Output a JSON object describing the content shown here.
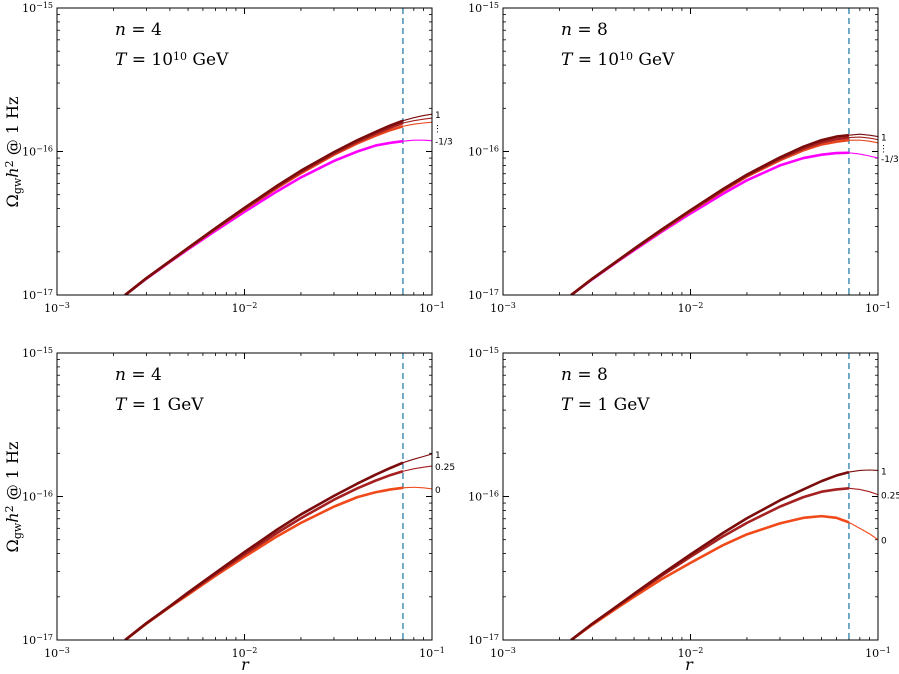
{
  "figure": {
    "ylabel": {
      "base": "Ω",
      "sub": "gw",
      "mid": "h",
      "sup": "2",
      "tail": " @ 1 Hz"
    },
    "xlabel": "r"
  },
  "chart_data": [
    {
      "type": "line",
      "panel": "top-left",
      "annot_n": "n = 4",
      "annot_T": {
        "prefix": "T = 10",
        "exp": "10",
        "unit": " GeV"
      },
      "xscale": "log",
      "yscale": "log",
      "xlim": [
        0.001,
        0.1
      ],
      "ylim": [
        1e-17,
        1e-15
      ],
      "xticks": [
        {
          "base": "10",
          "exp": "−3"
        },
        {
          "base": "10",
          "exp": "−2"
        },
        {
          "base": "10",
          "exp": "−1"
        }
      ],
      "yticks": [
        {
          "base": "10",
          "exp": "−17"
        },
        {
          "base": "10",
          "exp": "−16"
        },
        {
          "base": "10",
          "exp": "−15"
        }
      ],
      "vline_x": 0.07,
      "x": [
        0.00231,
        0.003,
        0.004,
        0.005,
        0.007,
        0.01,
        0.015,
        0.02,
        0.03,
        0.04,
        0.05,
        0.06,
        0.07
      ],
      "label_dots": "⋮",
      "series": [
        {
          "name": "1",
          "color": "#7a0c0c",
          "tail_x": [
            0.07,
            0.08,
            0.09,
            0.1
          ],
          "tail_y": [
            1.64e-16,
            1.72e-16,
            1.78e-16,
            1.82e-16
          ],
          "y": [
            1e-17,
            1.31e-17,
            1.72e-17,
            2.13e-17,
            2.92e-17,
            4.05e-17,
            5.8e-17,
            7.35e-17,
            9.9e-17,
            1.2e-16,
            1.37e-16,
            1.52e-16,
            1.64e-16
          ]
        },
        {
          "name": "",
          "color": "#a52020",
          "tail_x": [
            0.07,
            0.08,
            0.09,
            0.1
          ],
          "tail_y": [
            1.58e-16,
            1.64e-16,
            1.68e-16,
            1.71e-16
          ],
          "y": [
            1e-17,
            1.31e-17,
            1.72e-17,
            2.12e-17,
            2.9e-17,
            4e-17,
            5.7e-17,
            7.2e-17,
            9.7e-17,
            1.17e-16,
            1.33e-16,
            1.47e-16,
            1.58e-16
          ]
        },
        {
          "name": "",
          "color": "#e8451e",
          "tail_x": [
            0.07,
            0.08,
            0.09,
            0.1
          ],
          "tail_y": [
            1.5e-16,
            1.55e-16,
            1.58e-16,
            1.6e-16
          ],
          "y": [
            1e-17,
            1.31e-17,
            1.71e-17,
            2.11e-17,
            2.88e-17,
            3.95e-17,
            5.6e-17,
            7.05e-17,
            9.5e-17,
            1.14e-16,
            1.29e-16,
            1.41e-16,
            1.5e-16
          ]
        },
        {
          "name": "-1/3",
          "color": "#ff00ff",
          "tail_x": [
            0.07,
            0.08,
            0.09,
            0.1
          ],
          "tail_y": [
            1.18e-16,
            1.2e-16,
            1.2e-16,
            1.19e-16
          ],
          "y": [
            1e-17,
            1.3e-17,
            1.7e-17,
            2.08e-17,
            2.8e-17,
            3.8e-17,
            5.3e-17,
            6.6e-17,
            8.6e-17,
            1e-16,
            1.1e-16,
            1.15e-16,
            1.18e-16
          ]
        }
      ]
    },
    {
      "type": "line",
      "panel": "top-right",
      "annot_n": "n = 8",
      "annot_T": {
        "prefix": "T = 10",
        "exp": "10",
        "unit": " GeV"
      },
      "xscale": "log",
      "yscale": "log",
      "xlim": [
        0.001,
        0.1
      ],
      "ylim": [
        1e-17,
        1e-15
      ],
      "xticks": [
        {
          "base": "10",
          "exp": "−3"
        },
        {
          "base": "10",
          "exp": "−2"
        },
        {
          "base": "10",
          "exp": "−1"
        }
      ],
      "yticks": [
        {
          "base": "10",
          "exp": "−17"
        },
        {
          "base": "10",
          "exp": "−16"
        },
        {
          "base": "10",
          "exp": "−15"
        }
      ],
      "vline_x": 0.07,
      "x": [
        0.00231,
        0.003,
        0.004,
        0.005,
        0.007,
        0.01,
        0.015,
        0.02,
        0.03,
        0.04,
        0.05,
        0.06,
        0.07
      ],
      "label_dots": "⋮",
      "series": [
        {
          "name": "1",
          "color": "#7a0c0c",
          "tail_x": [
            0.07,
            0.08,
            0.09,
            0.1
          ],
          "tail_y": [
            1.3e-16,
            1.32e-16,
            1.3e-16,
            1.27e-16
          ],
          "y": [
            1e-17,
            1.3e-17,
            1.7e-17,
            2.1e-17,
            2.85e-17,
            3.9e-17,
            5.5e-17,
            6.9e-17,
            9.1e-17,
            1.08e-16,
            1.2e-16,
            1.27e-16,
            1.3e-16
          ]
        },
        {
          "name": "",
          "color": "#a52020",
          "tail_x": [
            0.07,
            0.08,
            0.09,
            0.1
          ],
          "tail_y": [
            1.25e-16,
            1.26e-16,
            1.24e-16,
            1.21e-16
          ],
          "y": [
            1e-17,
            1.3e-17,
            1.7e-17,
            2.09e-17,
            2.83e-17,
            3.86e-17,
            5.42e-17,
            6.8e-17,
            8.9e-17,
            1.05e-16,
            1.16e-16,
            1.22e-16,
            1.25e-16
          ]
        },
        {
          "name": "",
          "color": "#e8451e",
          "tail_x": [
            0.07,
            0.08,
            0.09,
            0.1
          ],
          "tail_y": [
            1.2e-16,
            1.2e-16,
            1.18e-16,
            1.15e-16
          ],
          "y": [
            1e-17,
            1.3e-17,
            1.69e-17,
            2.08e-17,
            2.8e-17,
            3.82e-17,
            5.35e-17,
            6.7e-17,
            8.7e-17,
            1.02e-16,
            1.12e-16,
            1.17e-16,
            1.2e-16
          ]
        },
        {
          "name": "-1/3",
          "color": "#ff00ff",
          "tail_x": [
            0.07,
            0.08,
            0.09,
            0.1
          ],
          "tail_y": [
            9.8e-17,
            9.6e-17,
            9.3e-17,
            9e-17
          ],
          "y": [
            1e-17,
            1.29e-17,
            1.68e-17,
            2.05e-17,
            2.75e-17,
            3.7e-17,
            5.1e-17,
            6.3e-17,
            8e-17,
            9e-17,
            9.5e-17,
            9.75e-17,
            9.8e-17
          ]
        }
      ]
    },
    {
      "type": "line",
      "panel": "bottom-left",
      "annot_n": "n = 4",
      "annot_T": {
        "prefix": "T = 1 GeV",
        "exp": "",
        "unit": ""
      },
      "xscale": "log",
      "yscale": "log",
      "xlim": [
        0.001,
        0.1
      ],
      "ylim": [
        1e-17,
        1e-15
      ],
      "xticks": [
        {
          "base": "10",
          "exp": "−3"
        },
        {
          "base": "10",
          "exp": "−2"
        },
        {
          "base": "10",
          "exp": "−1"
        }
      ],
      "yticks": [
        {
          "base": "10",
          "exp": "−17"
        },
        {
          "base": "10",
          "exp": "−16"
        },
        {
          "base": "10",
          "exp": "−15"
        }
      ],
      "vline_x": 0.07,
      "x": [
        0.00231,
        0.003,
        0.004,
        0.005,
        0.007,
        0.01,
        0.015,
        0.02,
        0.03,
        0.04,
        0.05,
        0.06,
        0.07
      ],
      "label_dots": "",
      "series": [
        {
          "name": "1",
          "color": "#7a0c0c",
          "tail_x": [
            0.07,
            0.08,
            0.09,
            0.1
          ],
          "tail_y": [
            1.72e-16,
            1.82e-16,
            1.9e-16,
            1.98e-16
          ],
          "y": [
            1e-17,
            1.31e-17,
            1.72e-17,
            2.14e-17,
            2.94e-17,
            4.1e-17,
            5.9e-17,
            7.5e-17,
            1.01e-16,
            1.23e-16,
            1.42e-16,
            1.58e-16,
            1.72e-16
          ]
        },
        {
          "name": "0.25",
          "color": "#a52020",
          "tail_x": [
            0.07,
            0.08,
            0.09,
            0.1
          ],
          "tail_y": [
            1.5e-16,
            1.56e-16,
            1.6e-16,
            1.63e-16
          ],
          "y": [
            1e-17,
            1.31e-17,
            1.71e-17,
            2.11e-17,
            2.88e-17,
            3.95e-17,
            5.6e-17,
            7.05e-17,
            9.5e-17,
            1.14e-16,
            1.29e-16,
            1.41e-16,
            1.5e-16
          ]
        },
        {
          "name": "0",
          "color": "#f04a1a",
          "tail_x": [
            0.07,
            0.08,
            0.09,
            0.1
          ],
          "tail_y": [
            1.15e-16,
            1.16e-16,
            1.15e-16,
            1.13e-16
          ],
          "y": [
            1e-17,
            1.3e-17,
            1.7e-17,
            2.07e-17,
            2.8e-17,
            3.8e-17,
            5.3e-17,
            6.55e-17,
            8.5e-17,
            9.9e-17,
            1.07e-16,
            1.12e-16,
            1.15e-16
          ]
        }
      ]
    },
    {
      "type": "line",
      "panel": "bottom-right",
      "annot_n": "n = 8",
      "annot_T": {
        "prefix": "T = 1 GeV",
        "exp": "",
        "unit": ""
      },
      "xscale": "log",
      "yscale": "log",
      "xlim": [
        0.001,
        0.1
      ],
      "ylim": [
        1e-17,
        1e-15
      ],
      "xticks": [
        {
          "base": "10",
          "exp": "−3"
        },
        {
          "base": "10",
          "exp": "−2"
        },
        {
          "base": "10",
          "exp": "−1"
        }
      ],
      "yticks": [
        {
          "base": "10",
          "exp": "−17"
        },
        {
          "base": "10",
          "exp": "−16"
        },
        {
          "base": "10",
          "exp": "−15"
        }
      ],
      "vline_x": 0.07,
      "x": [
        0.00231,
        0.003,
        0.004,
        0.005,
        0.007,
        0.01,
        0.015,
        0.02,
        0.03,
        0.04,
        0.05,
        0.06,
        0.07
      ],
      "label_dots": "",
      "series": [
        {
          "name": "1",
          "color": "#7a0c0c",
          "tail_x": [
            0.07,
            0.08,
            0.09,
            0.1
          ],
          "tail_y": [
            1.48e-16,
            1.52e-16,
            1.53e-16,
            1.52e-16
          ],
          "y": [
            1e-17,
            1.3e-17,
            1.7e-17,
            2.1e-17,
            2.87e-17,
            3.95e-17,
            5.6e-17,
            7.05e-17,
            9.4e-17,
            1.12e-16,
            1.28e-16,
            1.4e-16,
            1.48e-16
          ]
        },
        {
          "name": "0.25",
          "color": "#a52020",
          "tail_x": [
            0.07,
            0.08,
            0.09,
            0.1
          ],
          "tail_y": [
            1.14e-16,
            1.12e-16,
            1.08e-16,
            1.03e-16
          ],
          "y": [
            1e-17,
            1.3e-17,
            1.69e-17,
            2.07e-17,
            2.8e-17,
            3.8e-17,
            5.3e-17,
            6.55e-17,
            8.5e-17,
            9.9e-17,
            1.08e-16,
            1.12e-16,
            1.14e-16
          ]
        },
        {
          "name": "0",
          "color": "#f04a1a",
          "tail_x": [
            0.07,
            0.08,
            0.09,
            0.1
          ],
          "tail_y": [
            6.6e-17,
            6e-17,
            5.5e-17,
            5e-17
          ],
          "y": [
            1e-17,
            1.28e-17,
            1.65e-17,
            2e-17,
            2.65e-17,
            3.45e-17,
            4.6e-17,
            5.45e-17,
            6.5e-17,
            7.1e-17,
            7.3e-17,
            7.1e-17,
            6.6e-17
          ]
        }
      ]
    }
  ]
}
